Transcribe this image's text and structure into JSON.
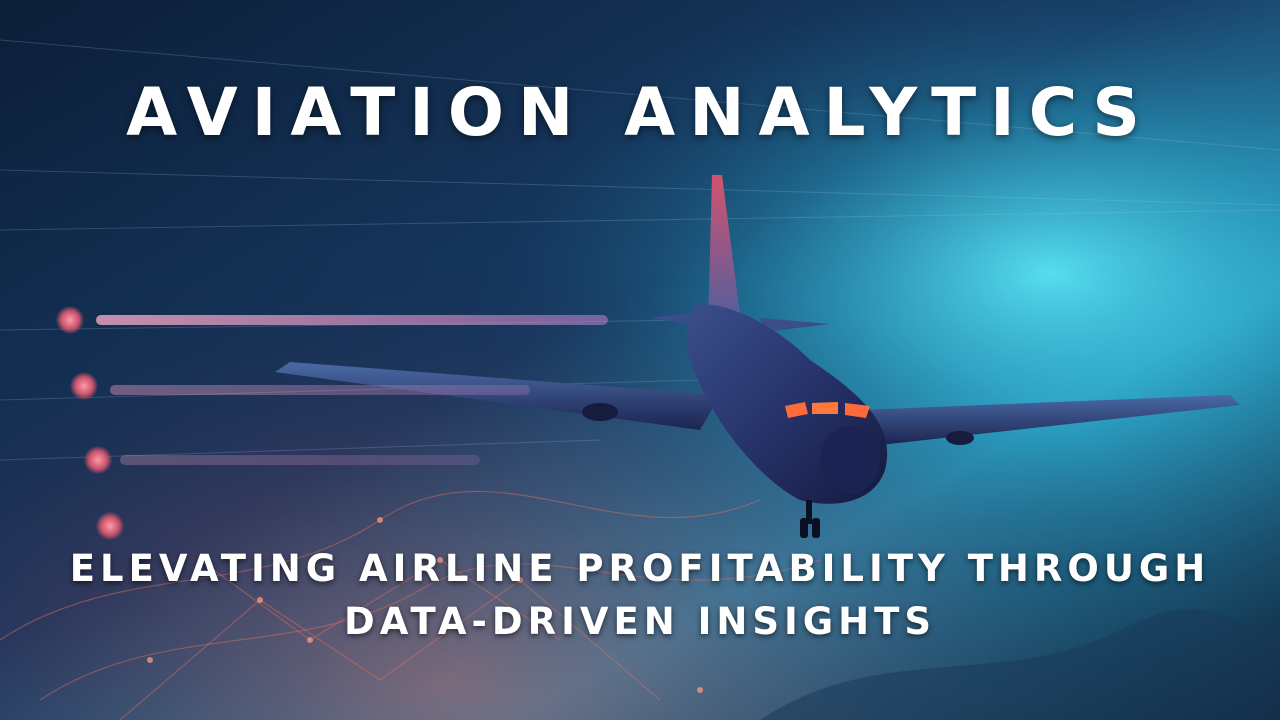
{
  "title": "AVIATION ANALYTICS",
  "subtitle_line1": "ELEVATING AIRLINE PROFITABILITY THROUGH",
  "subtitle_line2": "DATA-DRIVEN INSIGHTS",
  "colors": {
    "title": "#ffffff",
    "sky_cyan": "#2fd3e8",
    "deep_navy": "#0a1a30",
    "glow_pink": "#ff7a8a"
  }
}
